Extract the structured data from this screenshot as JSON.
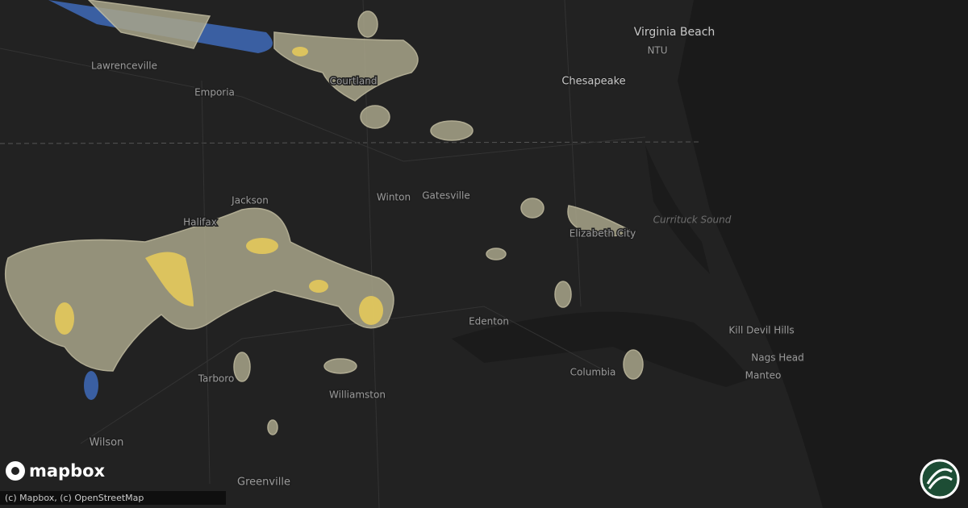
{
  "map": {
    "places": [
      "Virginia Beach",
      "NTU",
      "Chesapeake",
      "Lawrenceville",
      "Emporia",
      "Courtland",
      "Jackson",
      "Winton",
      "Gatesville",
      "Halifax",
      "Elizabeth City",
      "Edenton",
      "Kill Devil Hills",
      "Nags Head",
      "Manteo",
      "Columbia",
      "Tarboro",
      "Williamston",
      "Wilson",
      "Greenville"
    ],
    "water_labels": [
      "Currituck Sound"
    ]
  },
  "logo": "mapbox",
  "attribution": "(c) Mapbox, (c) OpenStreetMap"
}
